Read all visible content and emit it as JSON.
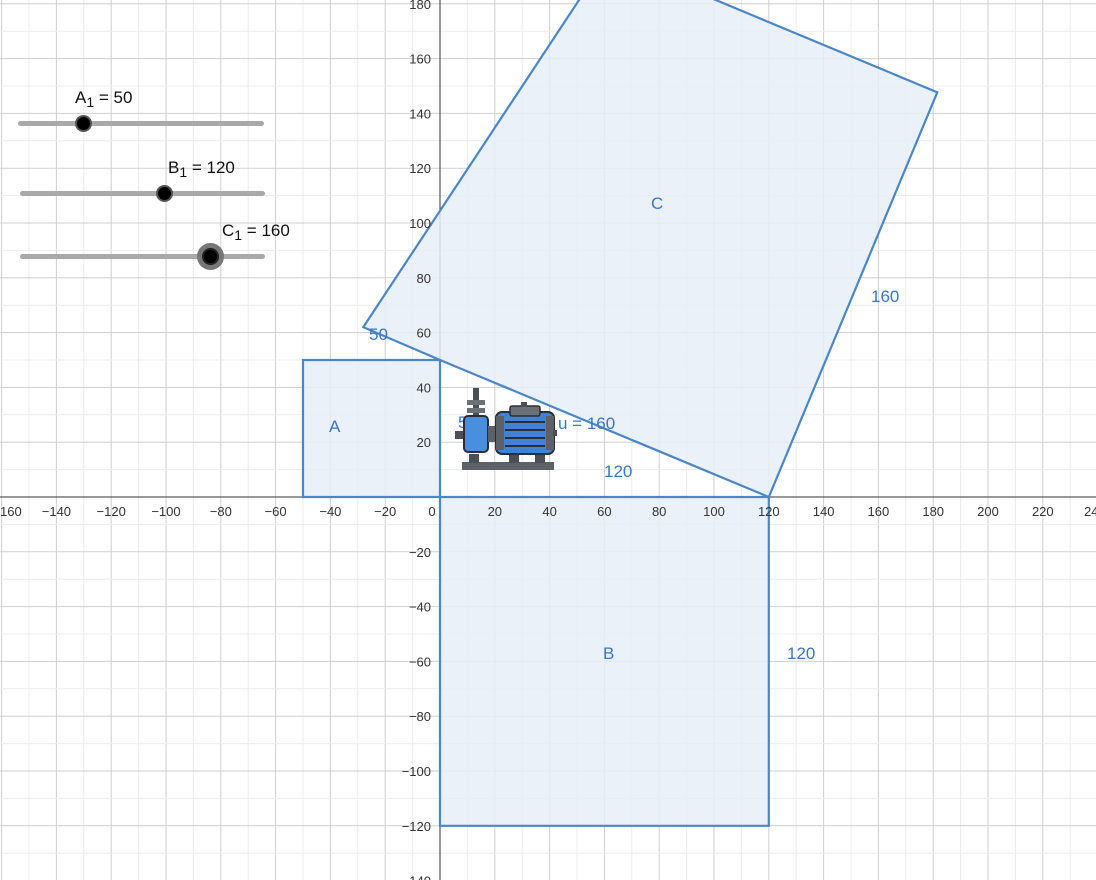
{
  "sliders": [
    {
      "name": "A",
      "subscript": "1",
      "equals": " = ",
      "value": "50",
      "min": 0,
      "max": 200,
      "current": 50,
      "active": false
    },
    {
      "name": "B",
      "subscript": "1",
      "equals": " = ",
      "value": "120",
      "min": 0,
      "max": 200,
      "current": 120,
      "active": false
    },
    {
      "name": "C",
      "subscript": "1",
      "equals": " = ",
      "value": "160",
      "min": 0,
      "max": 200,
      "current": 160,
      "active": true
    }
  ],
  "axes": {
    "x_ticks": [
      "160",
      "−140",
      "−120",
      "−100",
      "−80",
      "−60",
      "−40",
      "−20",
      "0",
      "20",
      "40",
      "60",
      "80",
      "100",
      "120",
      "140",
      "160",
      "180",
      "200",
      "220",
      "24"
    ],
    "y_ticks": [
      "180",
      "160",
      "140",
      "120",
      "100",
      "80",
      "60",
      "40",
      "20",
      "−20",
      "−40",
      "−60",
      "−80",
      "−100",
      "−120",
      "−140"
    ]
  },
  "polygons": {
    "A": {
      "label": "A",
      "vertices": [
        [
          0,
          0
        ],
        [
          -50,
          0
        ],
        [
          -50,
          50
        ],
        [
          0,
          50
        ]
      ]
    },
    "B": {
      "label": "B",
      "vertices": [
        [
          0,
          0
        ],
        [
          120,
          0
        ],
        [
          120,
          -120
        ],
        [
          0,
          -120
        ]
      ]
    },
    "C": {
      "label": "C",
      "vertices": [
        [
          0,
          50
        ],
        [
          120,
          0
        ],
        [
          181.5,
          147.7
        ],
        [
          61.5,
          197.7
        ],
        [
          -28,
          62
        ]
      ]
    }
  },
  "edge_labels": {
    "a_side": "50",
    "c_left": "50",
    "b_bottom": "120",
    "b_right": "120",
    "c_right": "160",
    "hypotenuse": "u = 160"
  },
  "icons": {
    "pump": "pump-motor-icon"
  },
  "colors": {
    "fill": "#e6eef8",
    "stroke": "#4a86c8",
    "label": "#3a77c8",
    "grid": "#d4d4d4",
    "axis": "#333333"
  }
}
